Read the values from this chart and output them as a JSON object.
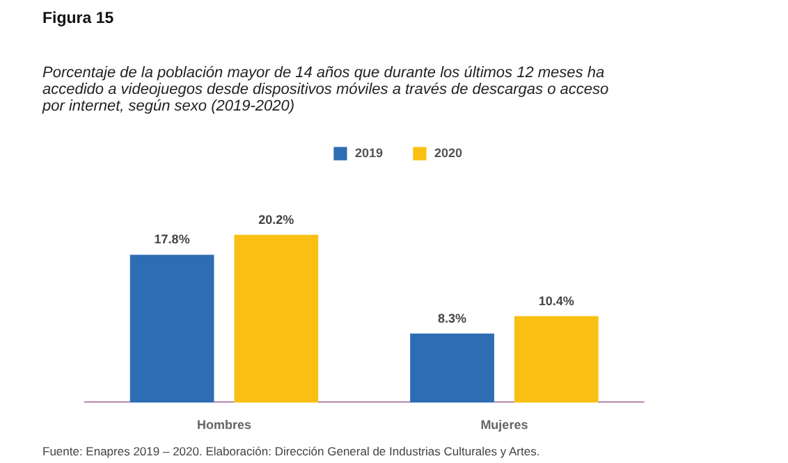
{
  "chart_data": {
    "type": "bar",
    "title": "Figura 15",
    "subtitle": "Porcentaje de la población mayor de 14 años que durante los últimos 12 meses ha\naccedido a videojuegos desde dispositivos móviles a través de descargas o acceso\npor internet, según sexo (2019-2020)",
    "categories": [
      "Hombres",
      "Mujeres"
    ],
    "series": [
      {
        "name": "2019",
        "color": "#2e6db4",
        "values": [
          17.8,
          8.3
        ],
        "value_labels": [
          "17.8%",
          "8.3%"
        ]
      },
      {
        "name": "2020",
        "color": "#f9c013",
        "values": [
          20.2,
          10.4
        ],
        "value_labels": [
          "20.2%",
          "10.4%"
        ]
      }
    ],
    "legend": "top",
    "grid": false,
    "annotations": [
      "Fuente: Enapres 2019 – 2020. Elaboración: Dirección General de Industrias Culturales y Artes."
    ]
  }
}
